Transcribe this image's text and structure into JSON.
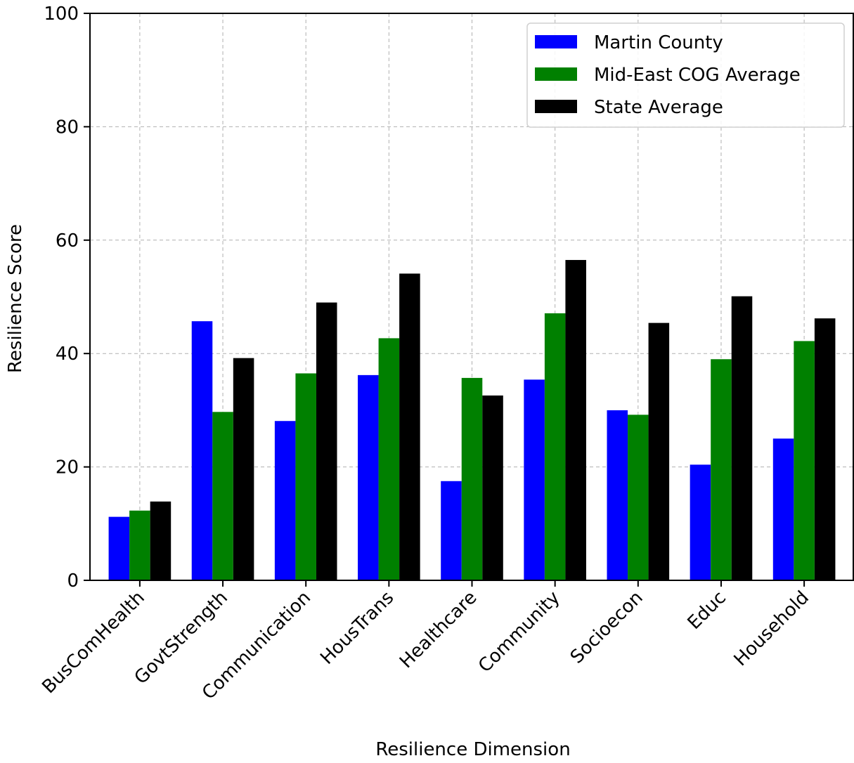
{
  "chart_data": {
    "type": "bar",
    "xlabel": "Resilience Dimension",
    "ylabel": "Resilience Score",
    "ylim": [
      0,
      100
    ],
    "yticks": [
      0,
      20,
      40,
      60,
      80,
      100
    ],
    "grid": true,
    "legend_position": "top-right",
    "categories": [
      "BusComHealth",
      "GovtStrength",
      "Communication",
      "HousTrans",
      "Healthcare",
      "Community",
      "Socioecon",
      "Educ",
      "Household"
    ],
    "series": [
      {
        "name": "Martin County",
        "color": "#0000ff",
        "values": [
          11.2,
          45.7,
          28.1,
          36.2,
          17.5,
          35.4,
          30.0,
          20.4,
          25.0
        ]
      },
      {
        "name": "Mid-East COG Average",
        "color": "#008000",
        "values": [
          12.3,
          29.7,
          36.5,
          42.7,
          35.7,
          47.1,
          29.2,
          39.0,
          42.2
        ]
      },
      {
        "name": "State Average",
        "color": "#000000",
        "values": [
          13.9,
          39.2,
          49.0,
          54.1,
          32.6,
          56.5,
          45.4,
          50.1,
          46.2
        ]
      }
    ]
  }
}
